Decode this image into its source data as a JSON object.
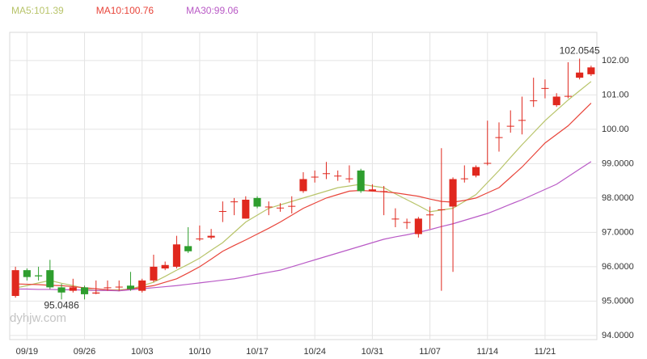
{
  "chart_data": {
    "type": "candlestick",
    "watermark": "dyhjw.com",
    "up_color": "#e0281e",
    "down_color": "#2e9e2e",
    "categories": [
      null,
      "09/19",
      null,
      null,
      null,
      null,
      "09/26",
      null,
      null,
      null,
      null,
      "10/03",
      null,
      null,
      null,
      null,
      "10/10",
      null,
      null,
      null,
      null,
      "10/17",
      null,
      null,
      null,
      null,
      "10/24",
      null,
      null,
      null,
      null,
      "10/31",
      null,
      null,
      null,
      null,
      "11/07",
      null,
      null,
      null,
      null,
      "11/14",
      null,
      null,
      null,
      null,
      "11/21",
      null,
      null,
      null,
      null
    ],
    "open": [
      95.15,
      95.9,
      95.75,
      95.9,
      95.4,
      95.3,
      95.4,
      95.22,
      95.38,
      95.4,
      95.45,
      95.3,
      95.6,
      95.95,
      96.0,
      96.6,
      96.8,
      96.85,
      97.6,
      97.9,
      97.4,
      98.0,
      97.75,
      97.72,
      97.75,
      98.2,
      98.6,
      98.7,
      98.65,
      98.55,
      98.8,
      98.2,
      98.2,
      97.4,
      97.28,
      96.95,
      97.5,
      97.65,
      97.75,
      98.55,
      98.65,
      99.0,
      99.75,
      100.1,
      100.25,
      100.82,
      101.2,
      100.7,
      100.95,
      101.5,
      101.6
    ],
    "high": [
      96.0,
      95.95,
      96.0,
      96.2,
      95.5,
      95.65,
      95.45,
      95.6,
      95.6,
      95.6,
      95.85,
      95.65,
      96.35,
      96.15,
      96.9,
      97.15,
      97.2,
      97.1,
      97.9,
      98.0,
      98.05,
      98.05,
      97.9,
      97.85,
      98.05,
      98.75,
      98.8,
      99.05,
      98.8,
      98.95,
      98.85,
      98.4,
      98.35,
      97.7,
      97.4,
      97.45,
      97.75,
      99.45,
      98.6,
      98.95,
      98.95,
      100.25,
      100.2,
      100.55,
      100.95,
      101.5,
      101.45,
      101.05,
      101.95,
      102.0545,
      101.85
    ],
    "low": [
      95.1,
      95.6,
      95.6,
      95.35,
      95.0486,
      95.25,
      95.05,
      95.2,
      95.3,
      95.3,
      95.3,
      95.25,
      95.55,
      95.9,
      95.95,
      96.4,
      96.75,
      96.8,
      97.3,
      97.5,
      97.4,
      97.7,
      97.5,
      97.6,
      97.55,
      98.15,
      98.45,
      98.55,
      98.5,
      98.45,
      98.15,
      98.2,
      97.5,
      97.15,
      97.1,
      96.85,
      97.1,
      95.3,
      95.85,
      98.45,
      98.6,
      98.95,
      99.35,
      99.9,
      99.85,
      100.65,
      100.9,
      100.65,
      100.9,
      101.45,
      101.55
    ],
    "close": [
      95.9,
      95.7,
      95.72,
      95.4,
      95.25,
      95.4,
      95.2,
      95.25,
      95.4,
      95.42,
      95.35,
      95.6,
      96.0,
      96.05,
      96.65,
      96.45,
      96.82,
      96.9,
      97.62,
      97.9,
      97.95,
      97.75,
      97.75,
      97.72,
      97.77,
      98.55,
      98.62,
      98.72,
      98.65,
      98.57,
      98.2,
      98.25,
      98.2,
      97.4,
      97.3,
      97.4,
      97.52,
      97.67,
      98.55,
      98.57,
      98.9,
      99.02,
      99.77,
      100.1,
      100.27,
      100.84,
      101.2,
      100.95,
      100.97,
      101.65,
      101.8
    ],
    "series": [
      {
        "name": "MA5:101.39",
        "color": "#b8c46a",
        "values": [
          95.38,
          95.45,
          95.53,
          95.6,
          95.52,
          95.45,
          95.37,
          95.3,
          95.32,
          95.33,
          95.35,
          95.45,
          95.55,
          95.72,
          95.9,
          96.07,
          96.25,
          96.48,
          96.7,
          97.0,
          97.3,
          97.5,
          97.7,
          97.8,
          97.9,
          98.0,
          98.1,
          98.2,
          98.3,
          98.35,
          98.4,
          98.35,
          98.3,
          98.12,
          97.95,
          97.78,
          97.6,
          97.65,
          97.7,
          97.9,
          98.1,
          98.45,
          98.8,
          99.18,
          99.55,
          99.9,
          100.25,
          100.55,
          100.85,
          101.12,
          101.39
        ]
      },
      {
        "name": "MA10:100.76",
        "color": "#e8443a",
        "values": [
          95.5,
          95.49,
          95.48,
          95.46,
          95.45,
          95.42,
          95.39,
          95.36,
          95.33,
          95.3,
          95.35,
          95.4,
          95.45,
          95.55,
          95.65,
          95.82,
          96.0,
          96.22,
          96.45,
          96.62,
          96.78,
          96.95,
          97.12,
          97.3,
          97.5,
          97.7,
          97.85,
          98.0,
          98.1,
          98.2,
          98.22,
          98.2,
          98.18,
          98.15,
          98.1,
          98.05,
          97.97,
          97.9,
          97.88,
          97.93,
          98.0,
          98.15,
          98.3,
          98.6,
          98.9,
          99.25,
          99.6,
          99.85,
          100.1,
          100.43,
          100.76
        ]
      },
      {
        "name": "MA30:99.06",
        "color": "#b95ac6",
        "values": [
          95.35,
          95.35,
          95.34,
          95.34,
          95.33,
          95.33,
          95.32,
          95.31,
          95.31,
          95.3,
          95.33,
          95.36,
          95.39,
          95.42,
          95.45,
          95.49,
          95.53,
          95.57,
          95.61,
          95.65,
          95.71,
          95.78,
          95.84,
          95.9,
          96.0,
          96.1,
          96.2,
          96.3,
          96.4,
          96.5,
          96.6,
          96.7,
          96.8,
          96.87,
          96.93,
          97.0,
          97.08,
          97.17,
          97.25,
          97.35,
          97.45,
          97.55,
          97.68,
          97.82,
          97.95,
          98.1,
          98.25,
          98.4,
          98.62,
          98.84,
          99.06
        ]
      }
    ],
    "ylim": [
      93.88,
      102.82
    ],
    "yticks": [
      {
        "value": 94,
        "label": "94.0000"
      },
      {
        "value": 95,
        "label": "95.0000"
      },
      {
        "value": 96,
        "label": "96.0000"
      },
      {
        "value": 97,
        "label": "97.0000"
      },
      {
        "value": 98,
        "label": "98.0000"
      },
      {
        "value": 99,
        "label": "99.0000"
      },
      {
        "value": 100,
        "label": "100.00"
      },
      {
        "value": 101,
        "label": "101.00"
      },
      {
        "value": 102,
        "label": "102.00"
      }
    ],
    "grid": true
  }
}
